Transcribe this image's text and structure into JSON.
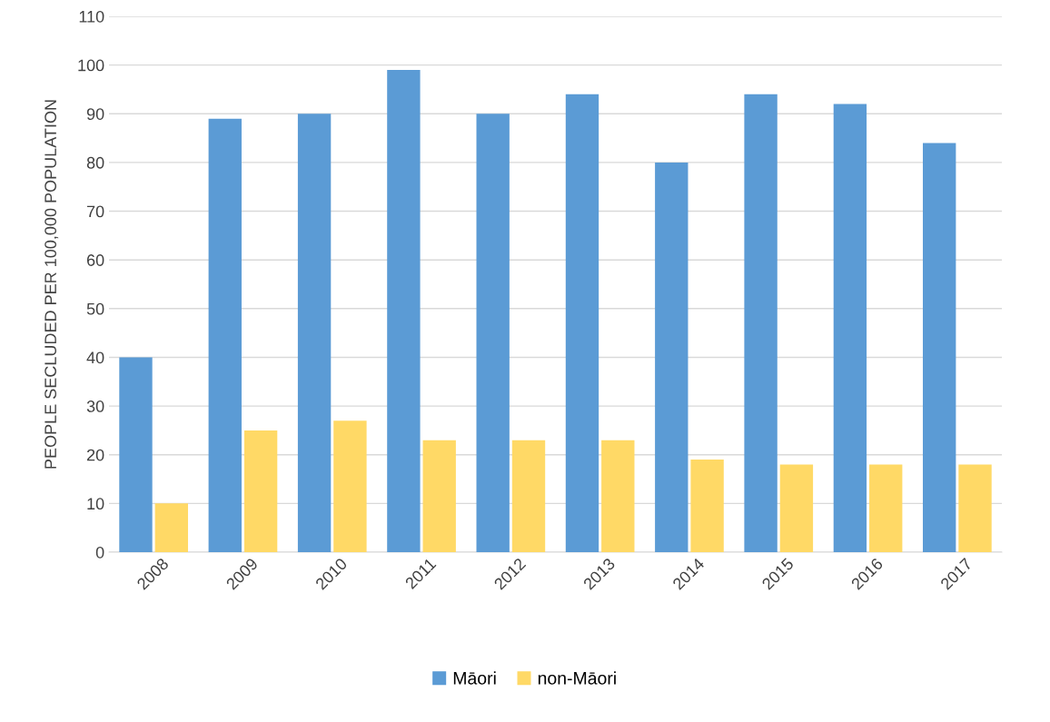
{
  "chart_data": {
    "type": "bar",
    "ylabel": "PEOPLE SECLUDED PER 100,000 POPULATION",
    "categories": [
      "2008",
      "2009",
      "2010",
      "2011",
      "2012",
      "2013",
      "2014",
      "2015",
      "2016",
      "2017"
    ],
    "series": [
      {
        "name": "Māori",
        "color": "#5b9bd5",
        "values": [
          40,
          89,
          90,
          99,
          90,
          94,
          80,
          94,
          92,
          84
        ]
      },
      {
        "name": "non-Māori",
        "color": "#ffd966",
        "values": [
          10,
          25,
          27,
          23,
          23,
          23,
          19,
          18,
          18,
          18
        ]
      }
    ],
    "ylim": [
      0,
      110
    ],
    "yticks": [
      0,
      10,
      20,
      30,
      40,
      50,
      60,
      70,
      80,
      90,
      100,
      110
    ],
    "grid": "y",
    "legend": "bottom"
  }
}
